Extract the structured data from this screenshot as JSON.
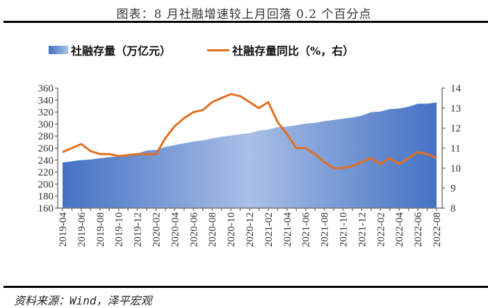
{
  "title": "图表：8 月社融增速较上月回落 0.2 个百分点",
  "source": "资料来源：Wind，泽平宏观",
  "colors": {
    "area_dark": "#4472c4",
    "area_light": "#a9bfe6",
    "line": "#e07020"
  },
  "chart_data": {
    "type": "area+line",
    "legend_position": "top",
    "series": [
      {
        "name": "社融存量（万亿元）",
        "type": "area",
        "axis": "left",
        "values": [
          236,
          238,
          240,
          241,
          243,
          245,
          246,
          248,
          251,
          256,
          257,
          262,
          265,
          268,
          271,
          273,
          276,
          279,
          281,
          283,
          285,
          289,
          291,
          295,
          296,
          298,
          301,
          302,
          305,
          307,
          309,
          311,
          314,
          320,
          321,
          325,
          326,
          329,
          334,
          334,
          336
        ]
      },
      {
        "name": "社融存量同比（%，右）",
        "type": "line",
        "axis": "right",
        "values": [
          10.8,
          11.0,
          11.2,
          10.85,
          10.7,
          10.7,
          10.6,
          10.65,
          10.7,
          10.7,
          10.7,
          11.5,
          12.1,
          12.5,
          12.8,
          12.9,
          13.3,
          13.5,
          13.7,
          13.6,
          13.3,
          13.0,
          13.3,
          12.3,
          11.7,
          11.0,
          11.0,
          10.7,
          10.3,
          10.0,
          10.0,
          10.1,
          10.3,
          10.5,
          10.2,
          10.5,
          10.2,
          10.5,
          10.8,
          10.7,
          10.5
        ]
      }
    ],
    "x": [
      "2019-04",
      "2019-05",
      "2019-06",
      "2019-07",
      "2019-08",
      "2019-09",
      "2019-10",
      "2019-11",
      "2019-12",
      "2020-01",
      "2020-02",
      "2020-03",
      "2020-04",
      "2020-05",
      "2020-06",
      "2020-07",
      "2020-08",
      "2020-09",
      "2020-10",
      "2020-11",
      "2020-12",
      "2021-01",
      "2021-02",
      "2021-03",
      "2021-04",
      "2021-05",
      "2021-06",
      "2021-07",
      "2021-08",
      "2021-09",
      "2021-10",
      "2021-11",
      "2021-12",
      "2022-01",
      "2022-02",
      "2022-03",
      "2022-04",
      "2022-05",
      "2022-06",
      "2022-07",
      "2022-08"
    ],
    "x_tick_labels": [
      "2019-04",
      "2019-06",
      "2019-08",
      "2019-10",
      "2019-12",
      "2020-02",
      "2020-04",
      "2020-06",
      "2020-08",
      "2020-10",
      "2020-12",
      "2021-02",
      "2021-04",
      "2021-06",
      "2021-08",
      "2021-10",
      "2021-12",
      "2022-02",
      "2022-04",
      "2022-06",
      "2022-08"
    ],
    "y_left": {
      "range": [
        160,
        360
      ],
      "ticks": [
        "160",
        "180",
        "200",
        "220",
        "240",
        "260",
        "280",
        "300",
        "320",
        "340",
        "360"
      ]
    },
    "y_right": {
      "range": [
        8,
        14
      ],
      "ticks": [
        "8",
        "9",
        "10",
        "11",
        "12",
        "13",
        "14"
      ]
    },
    "grid": false
  }
}
